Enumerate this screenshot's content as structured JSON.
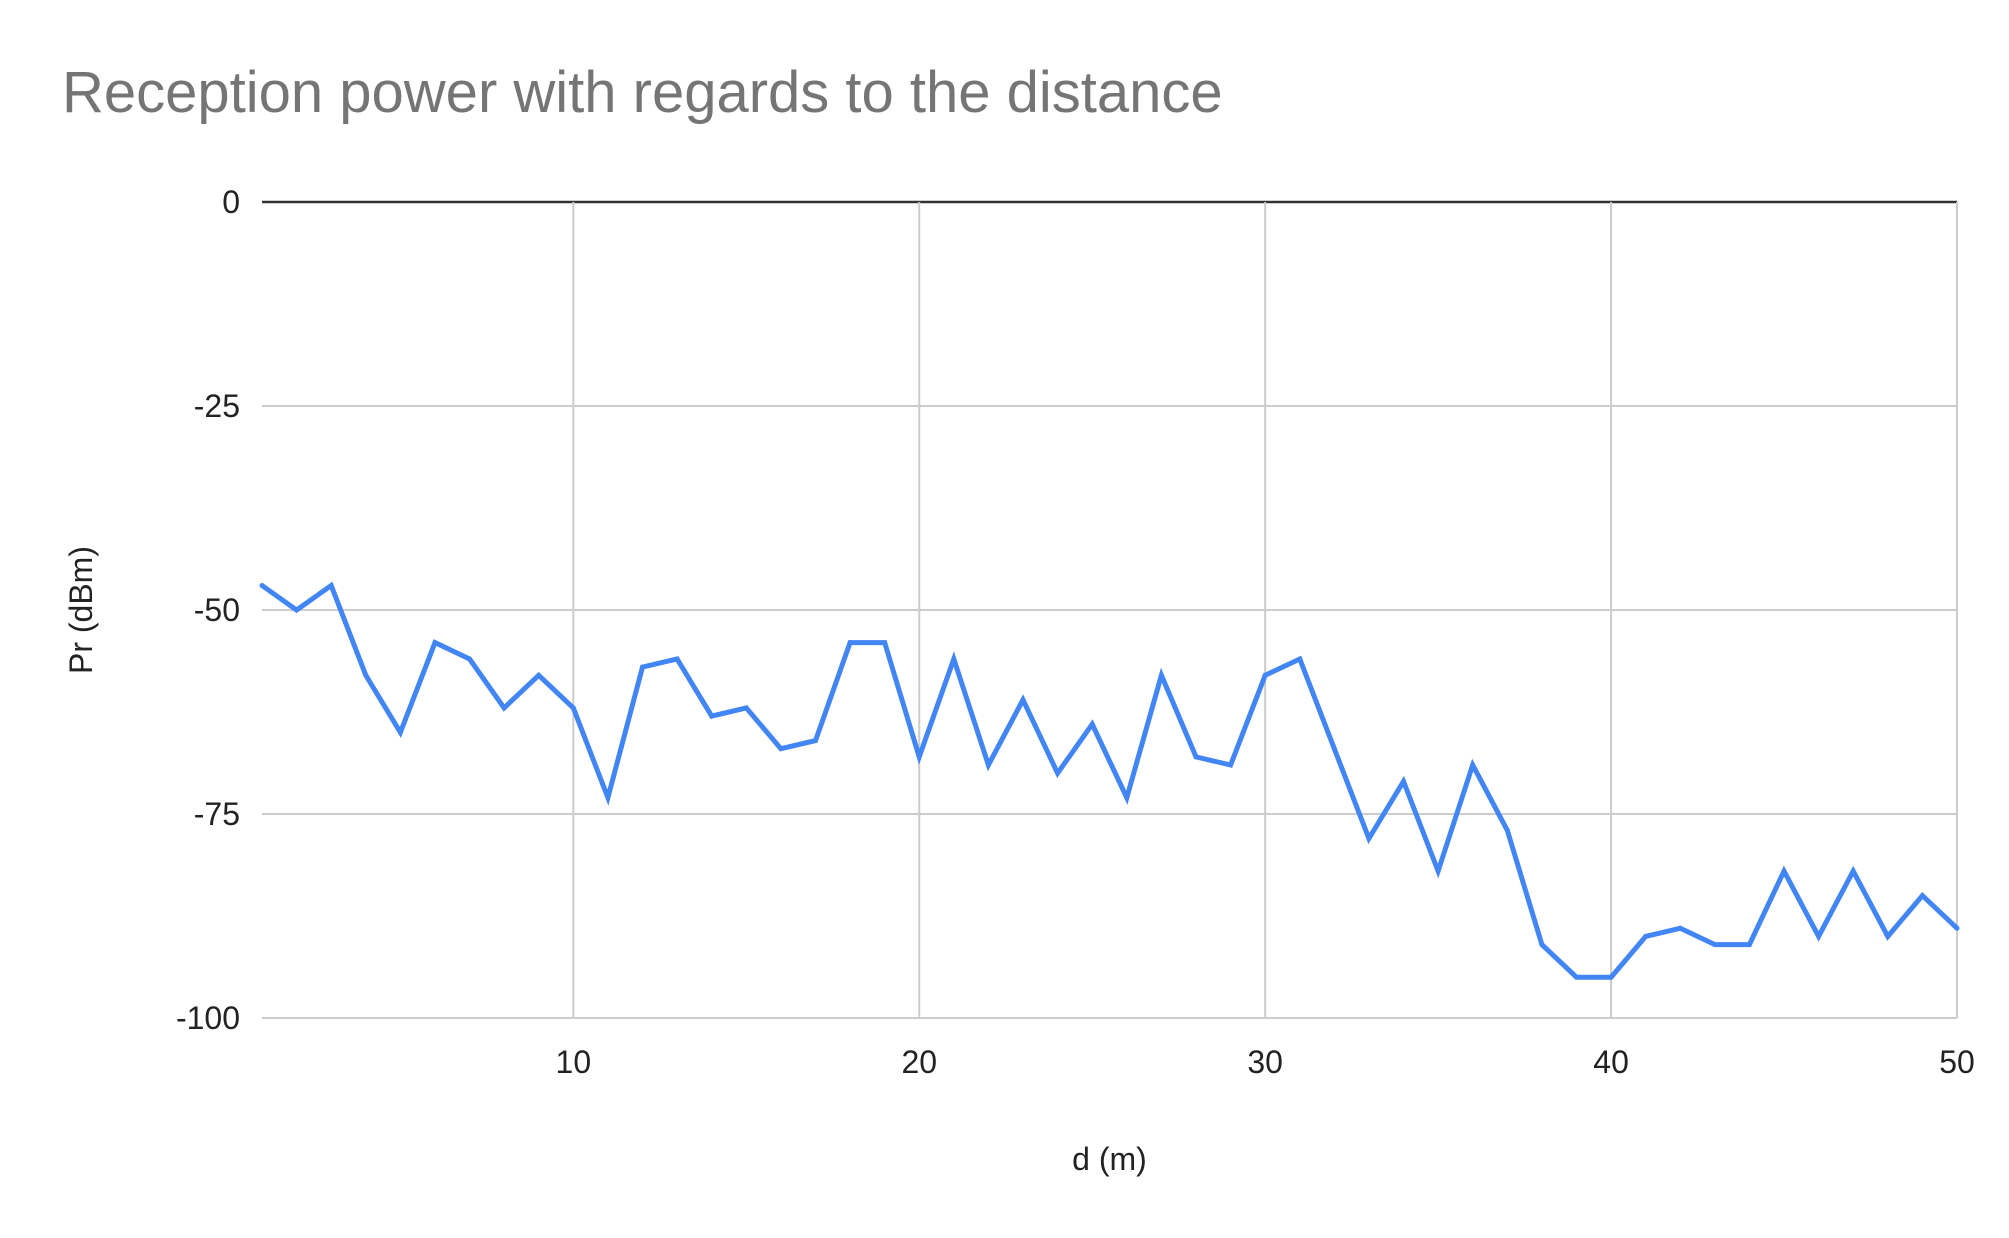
{
  "chart_data": {
    "type": "line",
    "title": "Reception power with regards to the distance",
    "xlabel": "d (m)",
    "ylabel": "Pr (dBm)",
    "xlim": [
      1,
      50
    ],
    "ylim": [
      -100,
      0
    ],
    "xticks": [
      10,
      20,
      30,
      40,
      50
    ],
    "yticks": [
      0,
      -25,
      -50,
      -75,
      -100
    ],
    "grid": true,
    "legend": "none",
    "series": [
      {
        "color": "#4285f4",
        "x": [
          1,
          2,
          3,
          4,
          5,
          6,
          7,
          8,
          9,
          10,
          11,
          12,
          13,
          14,
          15,
          16,
          17,
          18,
          19,
          20,
          21,
          22,
          23,
          24,
          25,
          26,
          27,
          28,
          29,
          30,
          31,
          32,
          33,
          34,
          35,
          36,
          37,
          38,
          39,
          40,
          41,
          42,
          43,
          44,
          45,
          46,
          47,
          48,
          49,
          50
        ],
        "values": [
          -47,
          -50,
          -47,
          -58,
          -65,
          -54,
          -56,
          -62,
          -58,
          -62,
          -73,
          -57,
          -56,
          -63,
          -62,
          -67,
          -66,
          -54,
          -54,
          -68,
          -56,
          -69,
          -61,
          -70,
          -64,
          -73,
          -58,
          -68,
          -69,
          -58,
          -56,
          -67,
          -78,
          -71,
          -82,
          -69,
          -77,
          -91,
          -95,
          -95,
          -90,
          -89,
          -91,
          -91,
          -82,
          -90,
          -82,
          -90,
          -85,
          -89
        ]
      }
    ]
  }
}
